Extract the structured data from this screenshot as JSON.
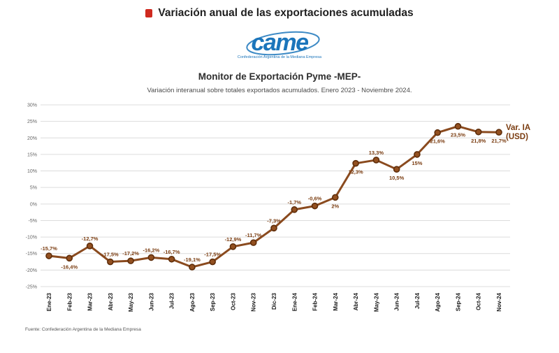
{
  "header": {
    "title": "Variación anual de las exportaciones acumuladas",
    "monitor_title": "Monitor de Exportación Pyme -MEP-",
    "description": "Variación interanual sobre totales exportados acumulados. Enero 2023 - Noviembre 2024."
  },
  "logo": {
    "text": "came",
    "tagline": "Confederación Argentina de la Mediana Empresa"
  },
  "footer": {
    "source": "Fuente: Confederación Argentina de la Mediana Empresa"
  },
  "chart_data": {
    "type": "line",
    "series_name": "Var. IA (USD)",
    "legend_lines": [
      "Var. IA",
      "(USD)"
    ],
    "legend_position": "right",
    "categories": [
      "Ene-23",
      "Feb-23",
      "Mar-23",
      "Abr-23",
      "May-23",
      "Jun-23",
      "Jul-23",
      "Ago-23",
      "Sep-23",
      "Oct-23",
      "Nov-23",
      "Dic-23",
      "Ene-24",
      "Feb-24",
      "Mar-24",
      "Abr-24",
      "May-24",
      "Jun-24",
      "Jul-24",
      "Ago-24",
      "Sep-24",
      "Oct-24",
      "Nov-24"
    ],
    "values": [
      -15.7,
      -16.4,
      -12.7,
      -17.5,
      -17.2,
      -16.2,
      -16.7,
      -19.1,
      -17.5,
      -12.9,
      -11.7,
      -7.3,
      -1.7,
      -0.6,
      2,
      12.3,
      13.3,
      10.5,
      15,
      21.6,
      23.5,
      21.8,
      21.7
    ],
    "point_labels": [
      "-15,7%",
      "-16,4%",
      "-12,7%",
      "-17,5%",
      "-17,2%",
      "-16,2%",
      "-16,7%",
      "-19,1%",
      "-17,5%",
      "-12,9%",
      "-11,7%",
      "-7,3%",
      "-1,7%",
      "-0,6%",
      "2%",
      "12,3%",
      "13,3%",
      "10,5%",
      "15%",
      "21,6%",
      "23,5%",
      "21,8%",
      "21,7%"
    ],
    "labels_below_indices": [
      1,
      14,
      15,
      17,
      18,
      19,
      20,
      21,
      22
    ],
    "ylim": [
      -25,
      30
    ],
    "ytick_step": 5,
    "ytick_labels": [
      "30%",
      "25%",
      "20%",
      "15%",
      "10%",
      "5%",
      "0%",
      "-5%",
      "-10%",
      "-15%",
      "-20%",
      "-25%"
    ],
    "grid": true,
    "colors": {
      "line": "#8a4a1e",
      "marker_fill": "#935020",
      "marker_stroke": "#5e2d0a",
      "label": "#7a3c10",
      "grid": "#dcdcdc",
      "tick": "#666666",
      "axis_text": "#1a1a1a",
      "logo_blue": "#1b75bb",
      "title_marker_red": "#cf2a1f"
    }
  }
}
